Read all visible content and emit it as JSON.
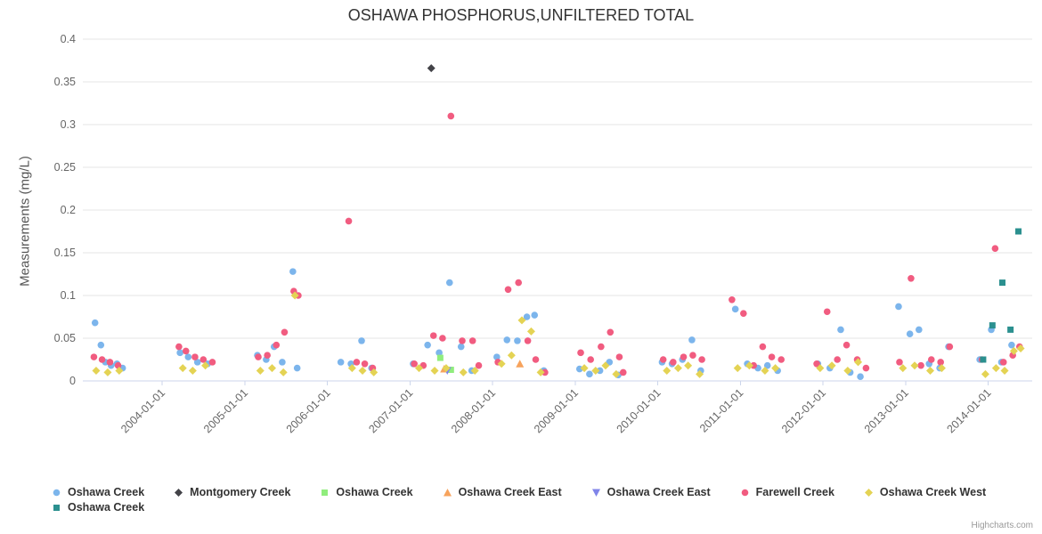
{
  "credit": "Highcharts.com",
  "chart_data": {
    "type": "scatter",
    "title": "OSHAWA PHOSPHORUS,UNFILTERED TOTAL",
    "xlabel": "",
    "ylabel": "Measurements (mg/L)",
    "ylim": [
      0,
      0.4
    ],
    "ytick_step": 0.05,
    "xlim": [
      "2003-01-15",
      "2014-07-15"
    ],
    "xticks": [
      "2004-01-01",
      "2005-01-01",
      "2006-01-01",
      "2007-01-01",
      "2008-01-01",
      "2009-01-01",
      "2010-01-01",
      "2011-01-01",
      "2012-01-01",
      "2013-01-01",
      "2014-01-01"
    ],
    "grid": "horizontal",
    "legend_position": "bottom",
    "series": [
      {
        "name": "Oshawa Creek",
        "color": "#7cb5ec",
        "marker": "circle",
        "points": [
          [
            "2003-03-10",
            0.068
          ],
          [
            "2003-04-05",
            0.042
          ],
          [
            "2003-04-25",
            0.022
          ],
          [
            "2003-05-20",
            0.018
          ],
          [
            "2003-06-15",
            0.02
          ],
          [
            "2003-07-10",
            0.015
          ],
          [
            "2004-03-20",
            0.033
          ],
          [
            "2004-04-25",
            0.028
          ],
          [
            "2004-06-05",
            0.022
          ],
          [
            "2004-07-20",
            0.02
          ],
          [
            "2005-02-25",
            0.03
          ],
          [
            "2005-04-05",
            0.025
          ],
          [
            "2005-05-10",
            0.04
          ],
          [
            "2005-06-15",
            0.022
          ],
          [
            "2005-08-01",
            0.128
          ],
          [
            "2005-08-20",
            0.015
          ],
          [
            "2006-03-01",
            0.022
          ],
          [
            "2006-04-15",
            0.02
          ],
          [
            "2006-06-01",
            0.047
          ],
          [
            "2006-07-15",
            0.015
          ],
          [
            "2007-01-15",
            0.02
          ],
          [
            "2007-03-20",
            0.042
          ],
          [
            "2007-05-10",
            0.033
          ],
          [
            "2007-06-25",
            0.115
          ],
          [
            "2007-08-15",
            0.04
          ],
          [
            "2007-10-01",
            0.012
          ],
          [
            "2008-01-20",
            0.028
          ],
          [
            "2008-03-05",
            0.048
          ],
          [
            "2008-04-20",
            0.047
          ],
          [
            "2008-06-01",
            0.075
          ],
          [
            "2008-07-05",
            0.077
          ],
          [
            "2008-08-15",
            0.012
          ],
          [
            "2009-01-20",
            0.014
          ],
          [
            "2009-03-05",
            0.008
          ],
          [
            "2009-04-20",
            0.012
          ],
          [
            "2009-06-01",
            0.022
          ],
          [
            "2009-07-10",
            0.007
          ],
          [
            "2010-01-20",
            0.022
          ],
          [
            "2010-03-05",
            0.02
          ],
          [
            "2010-04-20",
            0.025
          ],
          [
            "2010-06-01",
            0.048
          ],
          [
            "2010-07-10",
            0.012
          ],
          [
            "2010-12-10",
            0.084
          ],
          [
            "2011-02-01",
            0.02
          ],
          [
            "2011-03-20",
            0.015
          ],
          [
            "2011-05-01",
            0.018
          ],
          [
            "2011-06-15",
            0.012
          ],
          [
            "2011-12-10",
            0.02
          ],
          [
            "2012-02-01",
            0.015
          ],
          [
            "2012-03-20",
            0.06
          ],
          [
            "2012-05-01",
            0.01
          ],
          [
            "2012-06-15",
            0.005
          ],
          [
            "2012-12-01",
            0.087
          ],
          [
            "2013-01-20",
            0.055
          ],
          [
            "2013-03-01",
            0.06
          ],
          [
            "2013-04-15",
            0.02
          ],
          [
            "2013-06-01",
            0.015
          ],
          [
            "2013-07-10",
            0.04
          ],
          [
            "2013-11-25",
            0.025
          ],
          [
            "2014-01-15",
            0.06
          ],
          [
            "2014-03-01",
            0.022
          ],
          [
            "2014-04-15",
            0.042
          ]
        ]
      },
      {
        "name": "Montgomery Creek",
        "color": "#434348",
        "marker": "diamond",
        "points": [
          [
            "2007-04-05",
            0.366
          ]
        ]
      },
      {
        "name": "Oshawa Creek",
        "color": "#90ed7d",
        "marker": "square",
        "points": [
          [
            "2007-05-15",
            0.027
          ],
          [
            "2007-07-01",
            0.013
          ]
        ]
      },
      {
        "name": "Oshawa Creek East",
        "color": "#f7a35c",
        "marker": "triangle",
        "points": [
          [
            "2007-06-01",
            0.014
          ],
          [
            "2008-05-01",
            0.02
          ]
        ]
      },
      {
        "name": "Oshawa Creek East",
        "color": "#8085e9",
        "marker": "triangle-down",
        "points": [
          [
            "2007-06-15",
            0.012
          ]
        ]
      },
      {
        "name": "Farewell Creek",
        "color": "#f15c80",
        "marker": "circle",
        "points": [
          [
            "2003-03-05",
            0.028
          ],
          [
            "2003-04-10",
            0.025
          ],
          [
            "2003-05-15",
            0.022
          ],
          [
            "2003-06-20",
            0.018
          ],
          [
            "2004-03-15",
            0.04
          ],
          [
            "2004-04-15",
            0.035
          ],
          [
            "2004-05-25",
            0.028
          ],
          [
            "2004-07-01",
            0.025
          ],
          [
            "2004-08-10",
            0.022
          ],
          [
            "2005-03-01",
            0.028
          ],
          [
            "2005-04-10",
            0.03
          ],
          [
            "2005-05-20",
            0.042
          ],
          [
            "2005-06-25",
            0.057
          ],
          [
            "2005-08-05",
            0.105
          ],
          [
            "2005-08-25",
            0.1
          ],
          [
            "2006-04-05",
            0.187
          ],
          [
            "2006-05-10",
            0.022
          ],
          [
            "2006-06-15",
            0.02
          ],
          [
            "2006-07-20",
            0.015
          ],
          [
            "2007-01-20",
            0.02
          ],
          [
            "2007-03-01",
            0.018
          ],
          [
            "2007-04-15",
            0.053
          ],
          [
            "2007-05-25",
            0.05
          ],
          [
            "2007-07-01",
            0.31
          ],
          [
            "2007-08-20",
            0.047
          ],
          [
            "2007-10-05",
            0.047
          ],
          [
            "2007-11-01",
            0.018
          ],
          [
            "2008-01-25",
            0.022
          ],
          [
            "2008-03-10",
            0.107
          ],
          [
            "2008-04-25",
            0.115
          ],
          [
            "2008-06-05",
            0.047
          ],
          [
            "2008-07-10",
            0.025
          ],
          [
            "2008-08-20",
            0.01
          ],
          [
            "2009-01-25",
            0.033
          ],
          [
            "2009-03-10",
            0.025
          ],
          [
            "2009-04-25",
            0.04
          ],
          [
            "2009-06-05",
            0.057
          ],
          [
            "2009-07-15",
            0.028
          ],
          [
            "2009-08-01",
            0.01
          ],
          [
            "2010-01-25",
            0.025
          ],
          [
            "2010-03-10",
            0.022
          ],
          [
            "2010-04-25",
            0.028
          ],
          [
            "2010-06-05",
            0.03
          ],
          [
            "2010-07-15",
            0.025
          ],
          [
            "2010-11-25",
            0.095
          ],
          [
            "2011-01-15",
            0.079
          ],
          [
            "2011-03-01",
            0.018
          ],
          [
            "2011-04-10",
            0.04
          ],
          [
            "2011-05-20",
            0.028
          ],
          [
            "2011-07-01",
            0.025
          ],
          [
            "2011-12-05",
            0.02
          ],
          [
            "2012-01-20",
            0.081
          ],
          [
            "2012-03-05",
            0.025
          ],
          [
            "2012-04-15",
            0.042
          ],
          [
            "2012-06-01",
            0.025
          ],
          [
            "2012-07-10",
            0.015
          ],
          [
            "2012-12-05",
            0.022
          ],
          [
            "2013-01-25",
            0.12
          ],
          [
            "2013-03-10",
            0.018
          ],
          [
            "2013-04-25",
            0.025
          ],
          [
            "2013-06-05",
            0.022
          ],
          [
            "2013-07-15",
            0.04
          ],
          [
            "2013-12-05",
            0.025
          ],
          [
            "2014-02-01",
            0.155
          ],
          [
            "2014-03-10",
            0.022
          ],
          [
            "2014-04-20",
            0.03
          ],
          [
            "2014-05-20",
            0.04
          ]
        ]
      },
      {
        "name": "Oshawa Creek West",
        "color": "#e4d354",
        "marker": "diamond",
        "points": [
          [
            "2003-03-15",
            0.012
          ],
          [
            "2003-05-05",
            0.01
          ],
          [
            "2003-06-25",
            0.012
          ],
          [
            "2004-04-01",
            0.015
          ],
          [
            "2004-05-15",
            0.012
          ],
          [
            "2004-07-10",
            0.018
          ],
          [
            "2005-03-10",
            0.012
          ],
          [
            "2005-05-01",
            0.015
          ],
          [
            "2005-06-20",
            0.01
          ],
          [
            "2005-08-10",
            0.1
          ],
          [
            "2006-04-20",
            0.015
          ],
          [
            "2006-06-05",
            0.012
          ],
          [
            "2006-07-25",
            0.01
          ],
          [
            "2007-02-10",
            0.015
          ],
          [
            "2007-04-20",
            0.012
          ],
          [
            "2007-06-10",
            0.015
          ],
          [
            "2007-08-25",
            0.01
          ],
          [
            "2007-10-15",
            0.012
          ],
          [
            "2008-02-10",
            0.02
          ],
          [
            "2008-03-25",
            0.03
          ],
          [
            "2008-05-10",
            0.071
          ],
          [
            "2008-06-20",
            0.058
          ],
          [
            "2008-08-01",
            0.01
          ],
          [
            "2009-02-10",
            0.015
          ],
          [
            "2009-04-01",
            0.012
          ],
          [
            "2009-05-15",
            0.018
          ],
          [
            "2009-07-01",
            0.008
          ],
          [
            "2010-02-10",
            0.012
          ],
          [
            "2010-04-01",
            0.015
          ],
          [
            "2010-05-15",
            0.018
          ],
          [
            "2010-07-05",
            0.008
          ],
          [
            "2010-12-20",
            0.015
          ],
          [
            "2011-02-10",
            0.018
          ],
          [
            "2011-04-20",
            0.012
          ],
          [
            "2011-06-05",
            0.015
          ],
          [
            "2011-12-20",
            0.015
          ],
          [
            "2012-02-10",
            0.018
          ],
          [
            "2012-04-20",
            0.012
          ],
          [
            "2012-06-05",
            0.022
          ],
          [
            "2012-12-20",
            0.015
          ],
          [
            "2013-02-10",
            0.018
          ],
          [
            "2013-04-20",
            0.012
          ],
          [
            "2013-06-10",
            0.015
          ],
          [
            "2013-12-20",
            0.008
          ],
          [
            "2014-02-05",
            0.015
          ],
          [
            "2014-03-15",
            0.012
          ],
          [
            "2014-04-25",
            0.035
          ],
          [
            "2014-05-25",
            0.038
          ]
        ]
      },
      {
        "name": "Oshawa Creek",
        "color": "#2b908f",
        "marker": "square",
        "points": [
          [
            "2013-12-10",
            0.025
          ],
          [
            "2014-01-20",
            0.065
          ],
          [
            "2014-03-05",
            0.115
          ],
          [
            "2014-04-10",
            0.06
          ],
          [
            "2014-05-15",
            0.175
          ]
        ]
      }
    ]
  }
}
